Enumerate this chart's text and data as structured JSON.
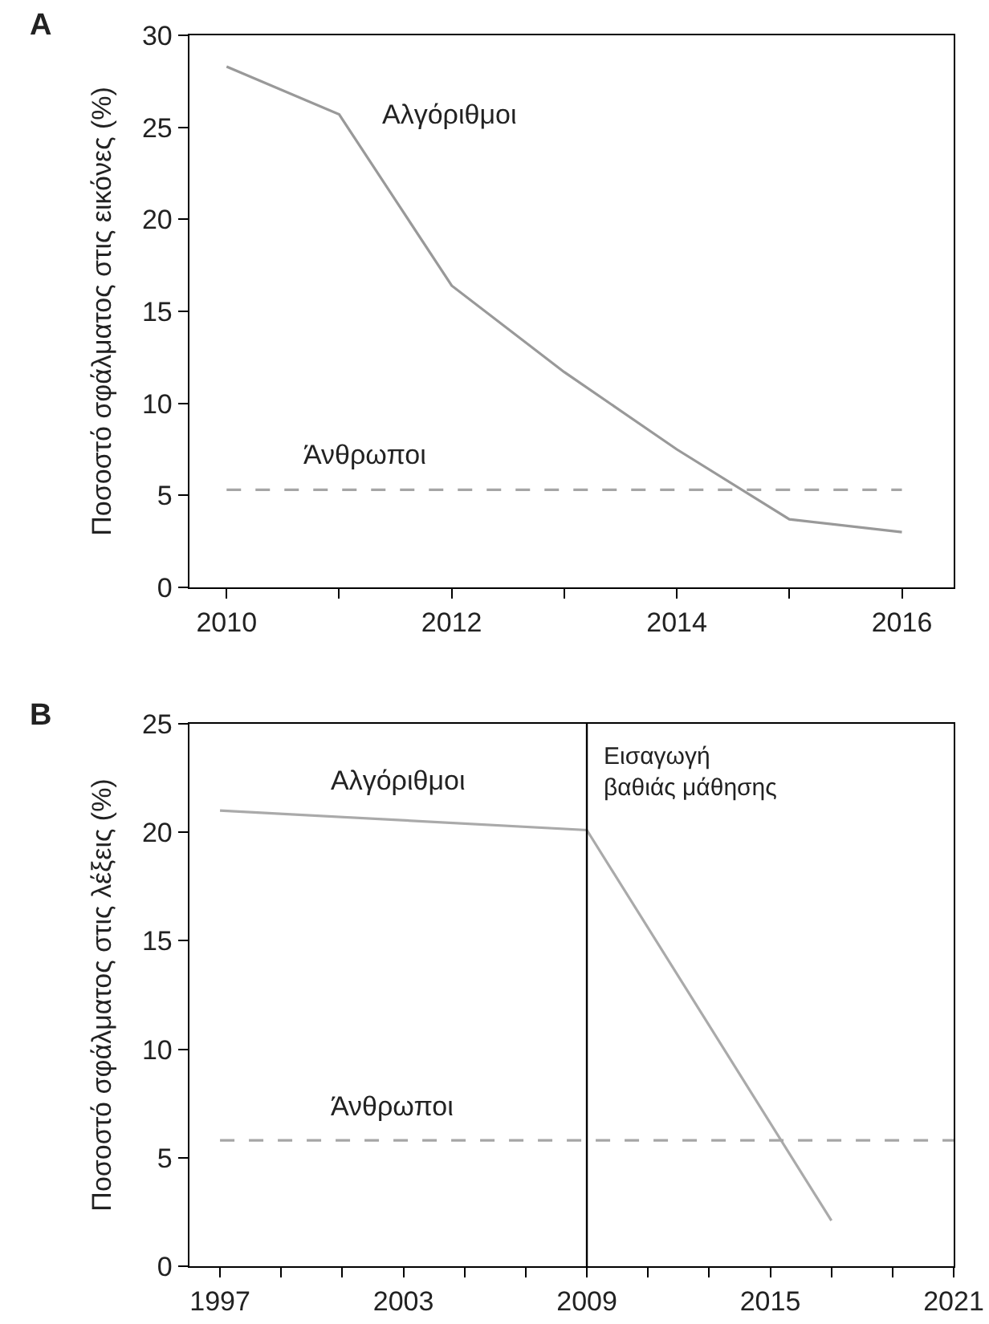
{
  "chart_data": [
    {
      "type": "line",
      "title": "A",
      "ylabel": "Ποσοστό σφάλματος στις εικόνες (%)",
      "xlim": [
        2009.67,
        2016.46
      ],
      "xticks": [
        2010,
        {
          "value": 2011,
          "label": null
        },
        2012,
        {
          "value": 2013,
          "label": null
        },
        2014,
        {
          "value": 2015,
          "label": null
        },
        2016
      ],
      "ylim": [
        0,
        30
      ],
      "yticks": [
        0,
        5,
        10,
        15,
        20,
        25,
        30
      ],
      "grid": false,
      "legend": false,
      "series": [
        {
          "name": "Αλγόριθμοι",
          "color": "#999999",
          "line_style": "solid",
          "x": [
            2010,
            2011,
            2012,
            2013,
            2014,
            2015,
            2016
          ],
          "values": [
            28.3,
            25.7,
            16.4,
            11.7,
            7.5,
            3.7,
            3.0
          ]
        },
        {
          "name": "Άνθρωποι",
          "color": "#a6a6a6",
          "line_style": "dashed",
          "x": [
            2010,
            2016
          ],
          "values": [
            5.3,
            5.3
          ]
        }
      ]
    },
    {
      "type": "line",
      "title": "B",
      "ylabel": "Ποσοστό σφάλματος στις λέξεις (%)",
      "xlim": [
        1996,
        2021
      ],
      "xticks": [
        1997,
        {
          "value": 1999,
          "label": null
        },
        {
          "value": 2001,
          "label": null
        },
        2003,
        {
          "value": 2005,
          "label": null
        },
        {
          "value": 2007,
          "label": null
        },
        2009,
        {
          "value": 2011,
          "label": null
        },
        {
          "value": 2013,
          "label": null
        },
        2015,
        {
          "value": 2017,
          "label": null
        },
        {
          "value": 2019,
          "label": null
        },
        2021
      ],
      "ylim": [
        0,
        25
      ],
      "yticks": [
        0,
        5,
        10,
        15,
        20,
        25
      ],
      "grid": false,
      "legend": false,
      "series": [
        {
          "name": "Αλγόριθμοι",
          "color": "#aaaaaa",
          "line_style": "solid",
          "x": [
            1997,
            2009,
            2017
          ],
          "values": [
            21.0,
            20.1,
            2.1
          ]
        },
        {
          "name": "Άνθρωποι",
          "color": "#a6a6a6",
          "line_style": "dashed",
          "x": [
            1997,
            2021
          ],
          "values": [
            5.8,
            5.8
          ]
        }
      ],
      "ref_lines": [
        {
          "axis": "x",
          "value": 2009,
          "label": "Εισαγωγή\nβαθιάς μάθησης",
          "color": "#000000"
        }
      ]
    }
  ]
}
